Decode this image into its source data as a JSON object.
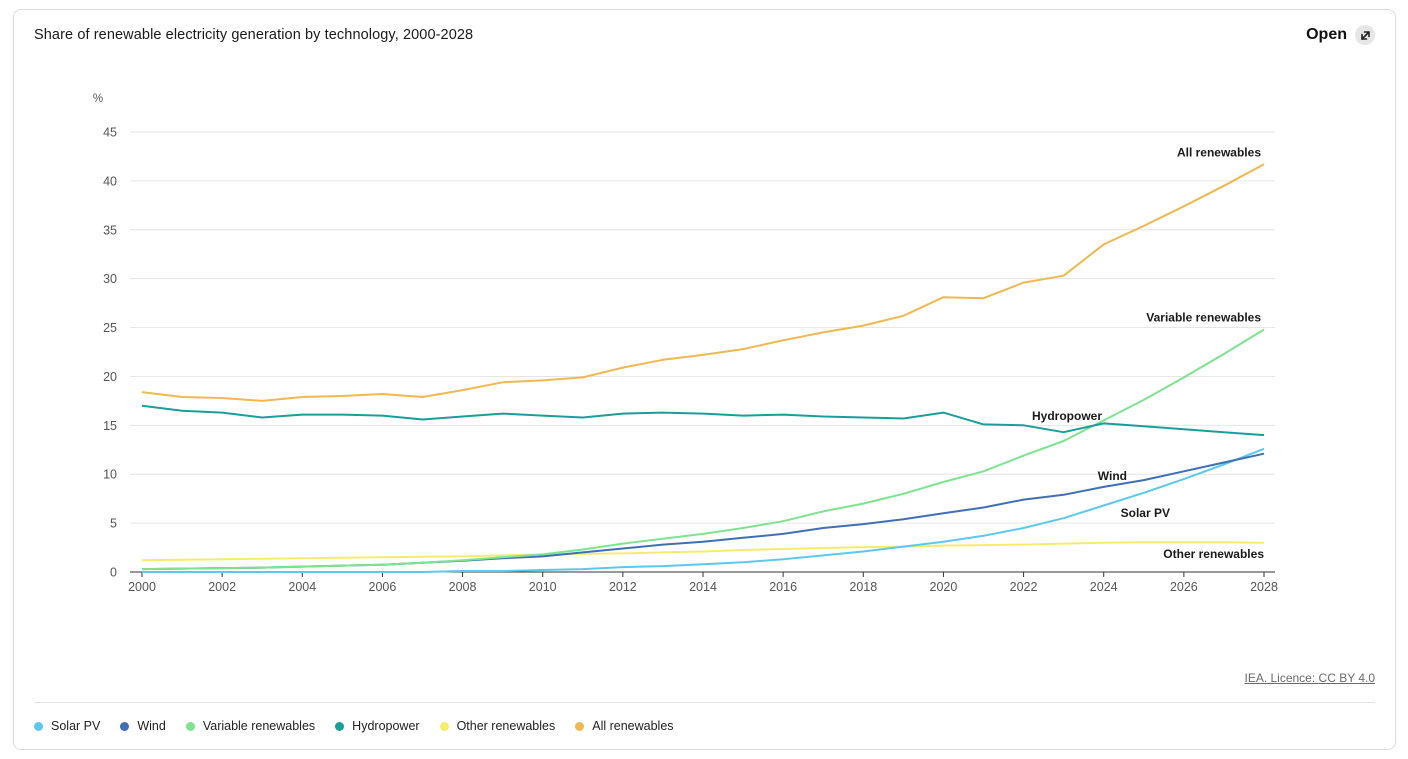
{
  "header": {
    "title": "Share of renewable electricity generation by technology, 2000-2028",
    "open_label": "Open",
    "open_icon": "external-arrow-icon"
  },
  "footer": {
    "licence": "IEA. Licence: CC BY 4.0"
  },
  "chart_data": {
    "type": "line",
    "title": "Share of renewable electricity generation by technology, 2000-2028",
    "xlabel": "",
    "ylabel": "%",
    "ylim": [
      0,
      45
    ],
    "yticks": [
      0,
      5,
      10,
      15,
      20,
      25,
      30,
      35,
      40,
      45
    ],
    "xticks": [
      2000,
      2002,
      2004,
      2006,
      2008,
      2010,
      2012,
      2014,
      2016,
      2018,
      2020,
      2022,
      2024,
      2026,
      2028
    ],
    "grid": true,
    "legend_position": "bottom",
    "x": [
      2000,
      2001,
      2002,
      2003,
      2004,
      2005,
      2006,
      2007,
      2008,
      2009,
      2010,
      2011,
      2012,
      2013,
      2014,
      2015,
      2016,
      2017,
      2018,
      2019,
      2020,
      2021,
      2022,
      2023,
      2024,
      2025,
      2026,
      2027,
      2028
    ],
    "series": [
      {
        "name": "Solar PV",
        "color": "#5bc8ef",
        "label": "Solar PV",
        "values": [
          0.0,
          0.0,
          0.0,
          0.0,
          0.0,
          0.0,
          0.0,
          0.0,
          0.1,
          0.1,
          0.2,
          0.3,
          0.5,
          0.6,
          0.8,
          1.0,
          1.3,
          1.7,
          2.1,
          2.6,
          3.1,
          3.7,
          4.5,
          5.5,
          6.8,
          8.1,
          9.5,
          11.0,
          12.6
        ]
      },
      {
        "name": "Wind",
        "color": "#3f6fb5",
        "label": "Wind",
        "values": [
          0.3,
          0.35,
          0.4,
          0.45,
          0.55,
          0.65,
          0.75,
          0.95,
          1.15,
          1.4,
          1.6,
          2.0,
          2.4,
          2.8,
          3.1,
          3.5,
          3.9,
          4.5,
          4.9,
          5.4,
          6.0,
          6.6,
          7.4,
          7.9,
          8.7,
          9.4,
          10.3,
          11.2,
          12.1
        ]
      },
      {
        "name": "Variable renewables",
        "color": "#7ee38f",
        "label": "Variable renewables",
        "values": [
          0.3,
          0.35,
          0.4,
          0.45,
          0.55,
          0.65,
          0.75,
          0.95,
          1.2,
          1.5,
          1.8,
          2.3,
          2.9,
          3.4,
          3.9,
          4.5,
          5.2,
          6.2,
          7.0,
          8.0,
          9.2,
          10.3,
          11.9,
          13.4,
          15.5,
          17.6,
          19.9,
          22.3,
          24.8
        ]
      },
      {
        "name": "Hydropower",
        "color": "#1a9e9a",
        "label": "Hydropower",
        "values": [
          17.0,
          16.5,
          16.3,
          15.8,
          16.1,
          16.1,
          16.0,
          15.6,
          15.9,
          16.2,
          16.0,
          15.8,
          16.2,
          16.3,
          16.2,
          16.0,
          16.1,
          15.9,
          15.8,
          15.7,
          16.3,
          15.1,
          15.0,
          14.3,
          15.2,
          14.9,
          14.6,
          14.3,
          14.0
        ]
      },
      {
        "name": "Other renewables",
        "color": "#f5ec6b",
        "label": "Other renewables",
        "values": [
          1.2,
          1.25,
          1.3,
          1.35,
          1.4,
          1.45,
          1.5,
          1.55,
          1.6,
          1.7,
          1.8,
          1.85,
          1.9,
          2.0,
          2.1,
          2.25,
          2.35,
          2.45,
          2.55,
          2.6,
          2.7,
          2.75,
          2.8,
          2.9,
          3.0,
          3.05,
          3.05,
          3.05,
          3.0
        ]
      },
      {
        "name": "All renewables",
        "color": "#f0b84f",
        "label": "All renewables",
        "values": [
          18.4,
          17.9,
          17.8,
          17.5,
          17.9,
          18.0,
          18.2,
          17.9,
          18.6,
          19.4,
          19.6,
          19.9,
          20.9,
          21.7,
          22.2,
          22.8,
          23.7,
          24.5,
          25.2,
          26.2,
          28.1,
          28.0,
          29.6,
          30.3,
          33.5,
          35.4,
          37.4,
          39.5,
          41.7
        ]
      }
    ]
  }
}
